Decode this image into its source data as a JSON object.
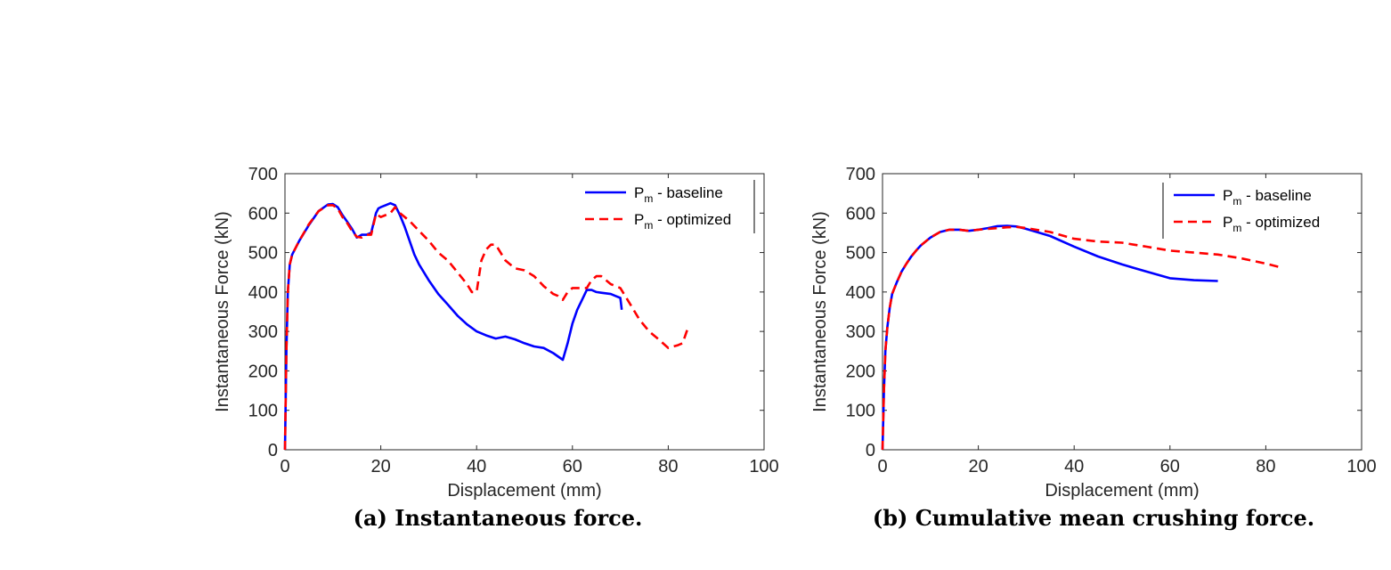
{
  "colors": {
    "baseline": "#0000ff",
    "optimized": "#ff0000",
    "axis": "#262626"
  },
  "chart_data": [
    {
      "type": "line",
      "caption": "(a) Instantaneous force.",
      "xlabel": "Displacement (mm)",
      "ylabel": "Instantaneous Force (kN)",
      "xlim": [
        0,
        100
      ],
      "ylim": [
        0,
        700
      ],
      "xticks": [
        0,
        20,
        40,
        60,
        80,
        100
      ],
      "yticks": [
        0,
        100,
        200,
        300,
        400,
        500,
        600,
        700
      ],
      "grid": false,
      "legend_position": "top-right",
      "series": [
        {
          "name_main": "P",
          "name_sub": "m",
          "name_rest": " - baseline",
          "style": "solid",
          "x": [
            0,
            0.3,
            0.6,
            1,
            1.5,
            3,
            5,
            7,
            9,
            10,
            11,
            12,
            13,
            14,
            15,
            16,
            17,
            18,
            19,
            19.5,
            20,
            21,
            22,
            23,
            24,
            25,
            26,
            27,
            28,
            30,
            32,
            34,
            36,
            38,
            40,
            42,
            44,
            46,
            48,
            50,
            52,
            54,
            56,
            58,
            59,
            60,
            61,
            62,
            63,
            64,
            65,
            66,
            68,
            69,
            70,
            70.3
          ],
          "y": [
            0,
            250,
            400,
            470,
            495,
            530,
            570,
            605,
            622,
            623,
            615,
            595,
            578,
            560,
            538,
            545,
            545,
            550,
            600,
            612,
            615,
            620,
            625,
            620,
            595,
            565,
            530,
            495,
            470,
            430,
            395,
            368,
            340,
            318,
            300,
            290,
            282,
            287,
            280,
            270,
            262,
            258,
            245,
            228,
            270,
            320,
            355,
            380,
            405,
            405,
            400,
            398,
            395,
            390,
            385,
            355
          ]
        },
        {
          "name_main": "P",
          "name_sub": "m",
          "name_rest": " - optimized",
          "style": "dashed",
          "x": [
            0,
            0.3,
            0.6,
            1,
            1.5,
            3,
            5,
            7,
            9,
            10,
            11,
            12,
            13,
            14,
            15,
            16,
            17,
            18,
            19,
            20,
            21,
            22,
            23,
            24,
            26,
            28,
            30,
            32,
            34,
            36,
            38,
            39,
            40,
            41,
            42,
            43,
            44,
            45,
            46,
            47,
            48,
            50,
            52,
            54,
            56,
            57,
            58,
            59,
            60,
            61,
            62,
            63,
            64,
            65,
            66,
            67,
            68,
            70,
            72,
            74,
            76,
            78,
            80,
            82,
            83,
            84
          ],
          "y": [
            0,
            250,
            400,
            470,
            495,
            530,
            572,
            605,
            620,
            620,
            612,
            590,
            575,
            555,
            540,
            538,
            545,
            545,
            598,
            590,
            595,
            600,
            615,
            600,
            580,
            555,
            530,
            500,
            480,
            450,
            420,
            400,
            400,
            480,
            508,
            520,
            520,
            500,
            480,
            470,
            460,
            455,
            440,
            415,
            395,
            390,
            380,
            400,
            410,
            410,
            410,
            410,
            430,
            440,
            440,
            430,
            420,
            410,
            370,
            330,
            300,
            280,
            258,
            265,
            270,
            305
          ]
        }
      ]
    },
    {
      "type": "line",
      "caption": "(b) Cumulative mean crushing force.",
      "xlabel": "Displacement (mm)",
      "ylabel": "Instantaneous Force (kN)",
      "xlim": [
        0,
        100
      ],
      "ylim": [
        0,
        700
      ],
      "xticks": [
        0,
        20,
        40,
        60,
        80,
        100
      ],
      "yticks": [
        0,
        100,
        200,
        300,
        400,
        500,
        600,
        700
      ],
      "grid": false,
      "legend_position": "top-right",
      "series": [
        {
          "name_main": "P",
          "name_sub": "m",
          "name_rest": " - baseline",
          "style": "solid",
          "x": [
            0,
            0.3,
            0.6,
            1,
            1.5,
            2,
            3,
            4,
            5,
            6,
            7,
            8,
            10,
            12,
            14,
            16,
            18,
            20,
            22,
            24,
            26,
            28,
            30,
            35,
            40,
            45,
            50,
            55,
            60,
            65,
            70
          ],
          "y": [
            0,
            150,
            250,
            310,
            360,
            395,
            425,
            452,
            472,
            490,
            505,
            518,
            538,
            552,
            558,
            558,
            555,
            558,
            562,
            567,
            568,
            566,
            560,
            542,
            515,
            490,
            470,
            452,
            435,
            430,
            428
          ]
        },
        {
          "name_main": "P",
          "name_sub": "m",
          "name_rest": " - optimized",
          "style": "dashed",
          "x": [
            0,
            0.3,
            0.6,
            1,
            1.5,
            2,
            3,
            4,
            5,
            6,
            7,
            8,
            10,
            12,
            14,
            16,
            18,
            20,
            22,
            24,
            26,
            28,
            30,
            35,
            40,
            45,
            50,
            55,
            60,
            65,
            70,
            75,
            80,
            83
          ],
          "y": [
            0,
            150,
            250,
            310,
            360,
            395,
            425,
            452,
            472,
            490,
            505,
            518,
            538,
            552,
            558,
            558,
            555,
            558,
            560,
            562,
            564,
            565,
            562,
            552,
            535,
            528,
            525,
            515,
            505,
            500,
            495,
            485,
            472,
            463
          ]
        }
      ]
    }
  ]
}
